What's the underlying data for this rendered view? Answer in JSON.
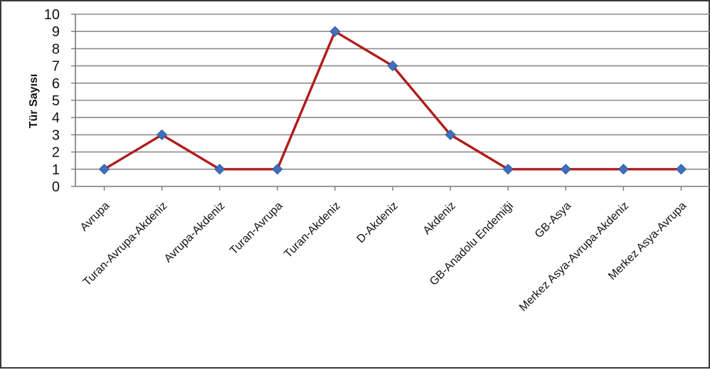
{
  "chart_data": {
    "type": "line",
    "title": "",
    "xlabel": "",
    "ylabel": "Tür Sayısı",
    "ylim": [
      0,
      10
    ],
    "yticks": [
      0,
      1,
      2,
      3,
      4,
      5,
      6,
      7,
      8,
      9,
      10
    ],
    "grid": "horizontal",
    "legend": "none",
    "categories": [
      "Avrupa",
      "Turan-Avrupa-Akdeniz",
      "Avrupa-Akdeniz",
      "Turan-Avrupa",
      "Turan-Akdeniz",
      "D-Akdeniz",
      "Akdeniz",
      "GB-Anadolu Endemiği",
      "GB-Asya",
      "Merkez Asya-Avrupa-Akdeniz",
      "Merkez Asya-Avrupa"
    ],
    "series": [
      {
        "values": [
          1,
          3,
          1,
          1,
          9,
          7,
          3,
          1,
          1,
          1,
          1
        ]
      }
    ],
    "colors": {
      "line": "#b01c1c",
      "marker": "#3f6fbf",
      "grid": "#8c8c8c",
      "axis": "#7a7a7a"
    }
  }
}
